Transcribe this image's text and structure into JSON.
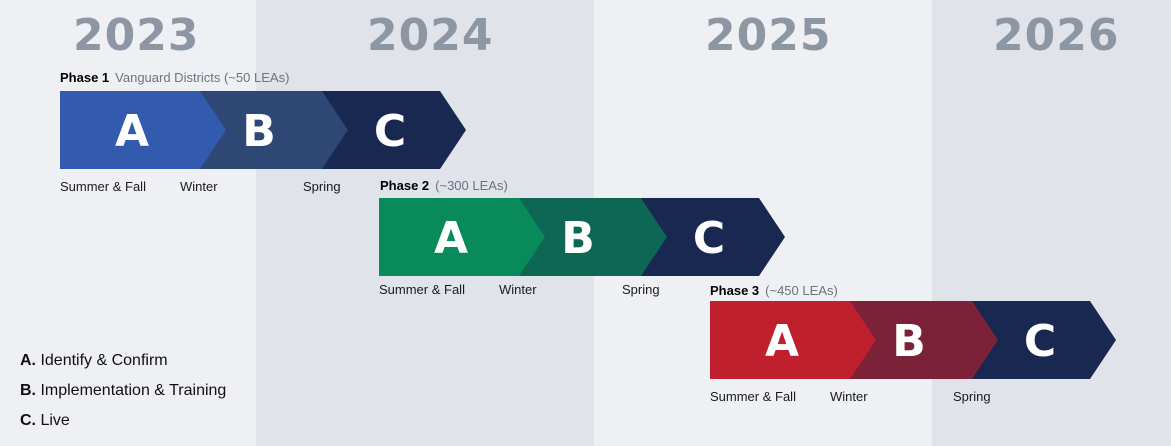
{
  "years": [
    "2023",
    "2024",
    "2025",
    "2026"
  ],
  "colors": {
    "bg_light": "#eef0f4",
    "bg_dark": "#e0e3ea",
    "year_text": "#8d96a3",
    "navy": "#182850"
  },
  "phases": [
    {
      "name": "Phase 1",
      "description": "Vanguard Districts (~50 LEAs)",
      "stages": [
        {
          "letter": "A",
          "color": "#325aae"
        },
        {
          "letter": "B",
          "color": "#2e4774"
        },
        {
          "letter": "C",
          "color": "#182850"
        }
      ],
      "seasons": [
        "Summer & Fall",
        "Winter",
        "Spring"
      ]
    },
    {
      "name": "Phase 2",
      "description": "(~300 LEAs)",
      "stages": [
        {
          "letter": "A",
          "color": "#088a5a"
        },
        {
          "letter": "B",
          "color": "#0e6654"
        },
        {
          "letter": "C",
          "color": "#182850"
        }
      ],
      "seasons": [
        "Summer & Fall",
        "Winter",
        "Spring"
      ]
    },
    {
      "name": "Phase 3",
      "description": "(~450 LEAs)",
      "stages": [
        {
          "letter": "A",
          "color": "#c0202e"
        },
        {
          "letter": "B",
          "color": "#7b2138"
        },
        {
          "letter": "C",
          "color": "#182850"
        }
      ],
      "seasons": [
        "Summer & Fall",
        "Winter",
        "Spring"
      ]
    }
  ],
  "legend": [
    {
      "key": "A.",
      "text": "Identify & Confirm"
    },
    {
      "key": "B.",
      "text": "Implementation & Training"
    },
    {
      "key": "C.",
      "text": "Live"
    }
  ]
}
